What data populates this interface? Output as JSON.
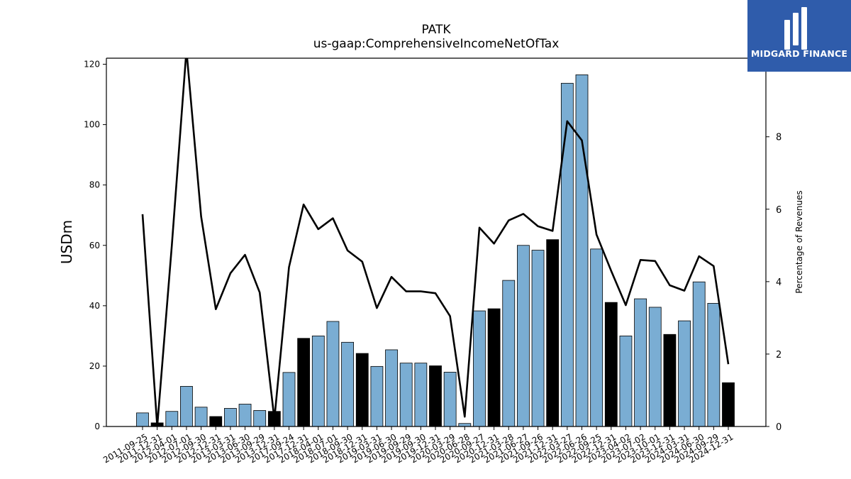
{
  "header": {
    "title": "PATK",
    "subtitle": "us-gaap:ComprehensiveIncomeNetOfTax"
  },
  "brand": {
    "name": "MIDGARD FINANCE",
    "icon": "midgard-logo-icon",
    "color": "#2f5cab"
  },
  "chart_data": {
    "type": "bar",
    "title": "PATK",
    "subtitle": "us-gaap:ComprehensiveIncomeNetOfTax",
    "ylabel": "USDm",
    "y2label": "Percentage of Revenues",
    "ylim": [
      0,
      122
    ],
    "y2lim": [
      0,
      10.17
    ],
    "yticks": [
      0,
      20,
      40,
      60,
      80,
      100,
      120
    ],
    "y2ticks": [
      0,
      2,
      4,
      6,
      8
    ],
    "colors": {
      "bar": "#7aadd3",
      "bar_highlight": "#000000",
      "line": "#000000"
    },
    "categories": [
      "2011-09-25",
      "2011-12-31",
      "2012-04-01",
      "2012-07-01",
      "2012-09-30",
      "2012-12-31",
      "2013-03-31",
      "2013-06-30",
      "2013-09-29",
      "2013-12-31",
      "2017-09-24",
      "2017-12-31",
      "2018-04-01",
      "2018-07-01",
      "2018-09-30",
      "2018-12-31",
      "2019-03-31",
      "2019-06-30",
      "2019-09-29",
      "2019-09-30",
      "2019-12-31",
      "2020-03-29",
      "2020-06-28",
      "2020-09-27",
      "2020-12-31",
      "2021-03-28",
      "2021-06-27",
      "2021-09-26",
      "2021-12-31",
      "2022-03-27",
      "2022-06-26",
      "2022-09-25",
      "2022-12-31",
      "2023-04-02",
      "2023-07-02",
      "2023-10-01",
      "2023-12-31",
      "2024-03-31",
      "2024-06-30",
      "2024-09-29",
      "2024-12-31"
    ],
    "series": [
      {
        "values": [
          4.5,
          1.2,
          5.0,
          13.3,
          6.4,
          3.3,
          6.0,
          7.4,
          5.3,
          5.0,
          17.9,
          29.2,
          30.0,
          34.8,
          27.9,
          24.2,
          19.9,
          25.4,
          21.0,
          21.0,
          20.1,
          18.0,
          1.0,
          38.3,
          39.0,
          48.4,
          60.0,
          58.4,
          61.9,
          113.7,
          116.5,
          58.8,
          41.1,
          30.0,
          42.3,
          39.5,
          30.5,
          35.0,
          47.9,
          40.8,
          14.5
        ],
        "highlight": [
          false,
          true,
          false,
          false,
          false,
          true,
          false,
          false,
          false,
          true,
          false,
          true,
          false,
          false,
          false,
          true,
          false,
          false,
          false,
          false,
          true,
          false,
          false,
          false,
          true,
          false,
          false,
          false,
          true,
          false,
          false,
          false,
          true,
          false,
          false,
          false,
          true,
          false,
          false,
          false,
          true
        ]
      },
      {
        "axis": "right",
        "values": [
          5.86,
          0.0,
          5.0,
          10.4,
          5.8,
          3.24,
          4.23,
          4.74,
          3.7,
          0.2,
          4.4,
          6.13,
          5.45,
          5.75,
          4.86,
          4.55,
          3.27,
          4.13,
          3.73,
          3.73,
          3.68,
          3.05,
          0.27,
          5.49,
          5.05,
          5.69,
          5.87,
          5.53,
          5.4,
          8.43,
          7.9,
          5.3,
          4.3,
          3.35,
          4.6,
          4.57,
          3.9,
          3.75,
          4.7,
          4.43,
          1.72
        ]
      }
    ]
  }
}
